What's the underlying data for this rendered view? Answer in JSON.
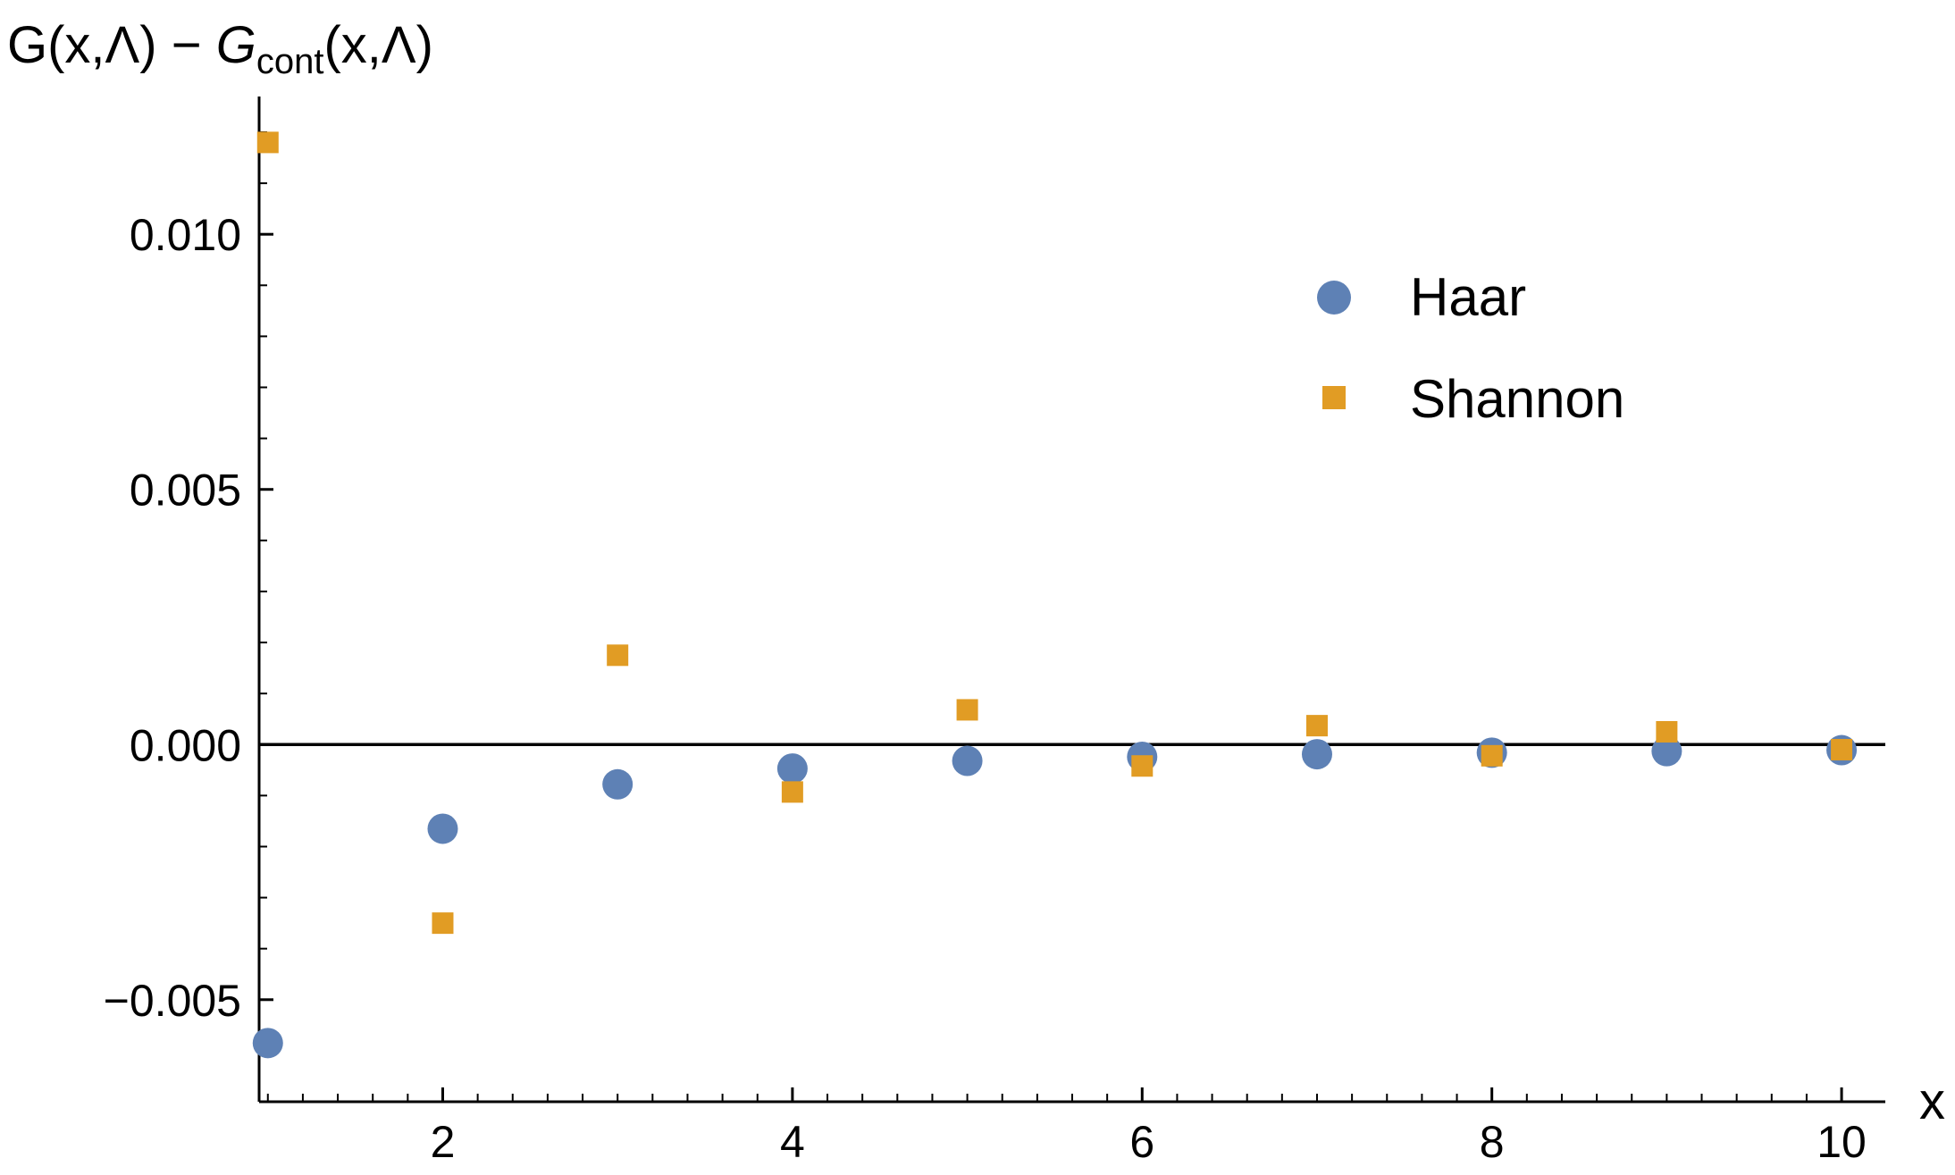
{
  "chart_data": {
    "type": "scatter",
    "ylabel_parts": {
      "pre": "G(x,Λ) − ",
      "g": "G",
      "sub": "cont",
      "post": "(x,Λ)"
    },
    "xlabel": "x",
    "xlim": [
      0.95,
      10.25
    ],
    "ylim": [
      -0.007,
      0.0127
    ],
    "x_axis_at_y": -0.007,
    "y_axis_at_x": 0.95,
    "zero_line": true,
    "x_ticks_major": [
      2,
      4,
      6,
      8,
      10
    ],
    "x_tick_labels": [
      "2",
      "4",
      "6",
      "8",
      "10"
    ],
    "y_ticks_major": [
      -0.005,
      0.0,
      0.005,
      0.01
    ],
    "y_tick_labels": [
      "−0.005",
      "0.000",
      "0.005",
      "0.010"
    ],
    "legend_position": "top-right",
    "series": [
      {
        "name": "Haar",
        "marker": "circle",
        "color": "#5E81B5",
        "x": [
          1,
          2,
          3,
          4,
          5,
          6,
          7,
          8,
          9,
          10
        ],
        "y": [
          -0.00585,
          -0.00165,
          -0.00078,
          -0.00047,
          -0.00032,
          -0.00024,
          -0.00019,
          -0.00016,
          -0.00013,
          -0.00011
        ]
      },
      {
        "name": "Shannon",
        "marker": "square",
        "color": "#E19C24",
        "x": [
          1,
          2,
          3,
          4,
          5,
          6,
          7,
          8,
          9,
          10
        ],
        "y": [
          0.0118,
          -0.0035,
          0.00175,
          -0.00093,
          0.00068,
          -0.00042,
          0.00037,
          -0.00022,
          0.00025,
          -0.0001
        ]
      }
    ]
  }
}
